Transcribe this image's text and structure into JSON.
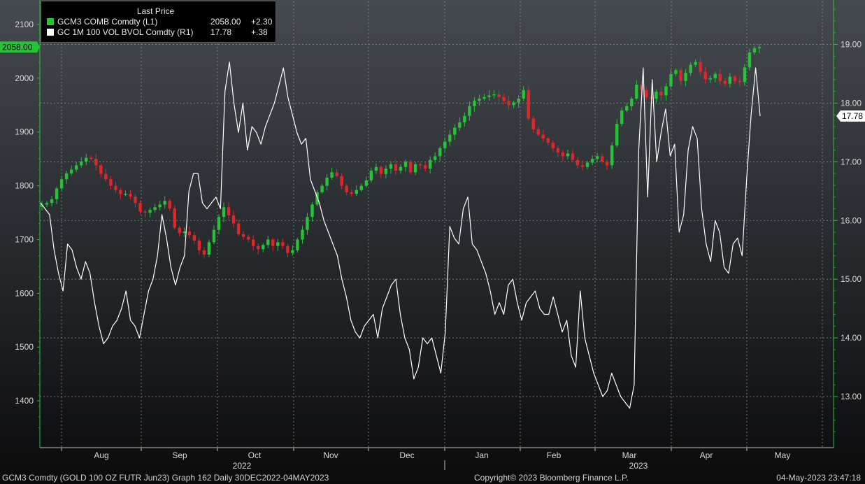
{
  "legend": {
    "header": "Last Price",
    "items": [
      {
        "name": "GCM3 COMB Comdty  (L1)",
        "value": "2058.00",
        "change": "+2.30",
        "color": "#25c437"
      },
      {
        "name": "GC 1M 100 VOL BVOL Comdty  (R1)",
        "value": "17.78",
        "change": "+.38",
        "color": "#ffffff"
      }
    ]
  },
  "footer": {
    "left": "GCM3 Comdty (GOLD 100 OZ FUTR  Jun23) Graph 162  Daily 30DEC2022-04MAY2023",
    "center": "Copyright© 2023 Bloomberg Finance L.P.",
    "right": "04-May-2023 23:47:18"
  },
  "chart_data": {
    "type": "line",
    "colors": {
      "up": "#25c437",
      "down": "#e0262b",
      "volatility": "#ffffff",
      "left_axis": "#25c437",
      "right_axis": "#25c437"
    },
    "left_axis": {
      "ticks": [
        1400,
        1500,
        1600,
        1700,
        1800,
        1900,
        2000,
        2100
      ],
      "last_label": "2058.00",
      "last_value": 2058
    },
    "right_axis": {
      "ticks": [
        13.0,
        14.0,
        15.0,
        16.0,
        17.0,
        18.0,
        19.0
      ],
      "tick_labels": [
        "13.00",
        "14.00",
        "15.00",
        "16.00",
        "17.00",
        "18.00",
        "19.00"
      ],
      "last_label": "17.78",
      "last_value": 17.78
    },
    "months": [
      "Aug",
      "Sep",
      "Oct",
      "Nov",
      "Dec",
      "Jan",
      "Feb",
      "Mar",
      "Apr",
      "May"
    ],
    "years": [
      "2022",
      "2023"
    ],
    "grid": true,
    "series": [
      {
        "name": "GCM3 COMB Comdty",
        "axis": "left",
        "style": "candlestick",
        "values": [
          1765,
          1768,
          1775,
          1795,
          1812,
          1823,
          1830,
          1838,
          1845,
          1852,
          1850,
          1838,
          1822,
          1812,
          1800,
          1792,
          1785,
          1785,
          1780,
          1768,
          1752,
          1750,
          1755,
          1760,
          1765,
          1772,
          1758,
          1722,
          1712,
          1715,
          1708,
          1698,
          1680,
          1672,
          1695,
          1718,
          1742,
          1760,
          1745,
          1730,
          1710,
          1705,
          1700,
          1688,
          1682,
          1690,
          1700,
          1688,
          1695,
          1688,
          1675,
          1680,
          1700,
          1718,
          1742,
          1765,
          1788,
          1800,
          1815,
          1825,
          1818,
          1800,
          1788,
          1785,
          1792,
          1800,
          1810,
          1828,
          1835,
          1822,
          1832,
          1840,
          1828,
          1835,
          1845,
          1825,
          1840,
          1838,
          1832,
          1848,
          1855,
          1870,
          1882,
          1895,
          1908,
          1918,
          1930,
          1948,
          1958,
          1962,
          1965,
          1968,
          1970,
          1965,
          1958,
          1950,
          1955,
          1962,
          1978,
          1925,
          1905,
          1895,
          1888,
          1880,
          1870,
          1862,
          1855,
          1860,
          1848,
          1838,
          1835,
          1843,
          1850,
          1855,
          1845,
          1838,
          1875,
          1915,
          1940,
          1948,
          1962,
          1988,
          1978,
          1965,
          1962,
          1975,
          1968,
          1985,
          2008,
          2015,
          1995,
          2010,
          2025,
          2030,
          2012,
          1998,
          2000,
          2008,
          1995,
          1990,
          2003,
          1995,
          1993,
          2020,
          2048,
          2056,
          2058
        ]
      },
      {
        "name": "GC 1M 100 VOL BVOL Comdty",
        "axis": "right",
        "style": "line",
        "values": [
          16.3,
          16.2,
          16.1,
          15.5,
          15.1,
          14.8,
          15.6,
          15.5,
          15.2,
          15.0,
          15.3,
          15.1,
          14.6,
          14.2,
          13.9,
          14.0,
          14.2,
          14.3,
          14.5,
          14.8,
          14.3,
          14.2,
          14.0,
          14.4,
          14.8,
          15.0,
          15.4,
          16.1,
          15.7,
          15.2,
          14.9,
          15.2,
          15.4,
          16.5,
          16.8,
          16.8,
          16.3,
          16.2,
          16.3,
          16.4,
          16.2,
          18.2,
          18.7,
          18.0,
          17.5,
          18.0,
          17.2,
          17.6,
          17.5,
          17.3,
          17.6,
          17.8,
          18.0,
          18.3,
          18.6,
          18.1,
          17.8,
          17.5,
          17.3,
          17.4,
          16.7,
          16.5,
          16.3,
          16.0,
          15.8,
          15.6,
          15.4,
          15.0,
          14.7,
          14.3,
          14.1,
          14.0,
          14.2,
          14.3,
          14.4,
          14.0,
          14.5,
          14.7,
          14.9,
          15.0,
          14.4,
          14.0,
          13.8,
          13.3,
          13.5,
          14.0,
          13.9,
          14.0,
          13.7,
          13.4,
          14.1,
          15.9,
          15.7,
          15.6,
          16.2,
          16.4,
          15.6,
          15.5,
          15.3,
          15.1,
          14.8,
          14.4,
          14.6,
          14.4,
          14.9,
          15.0,
          14.6,
          14.3,
          14.6,
          14.7,
          14.8,
          14.5,
          14.4,
          14.4,
          14.7,
          14.4,
          14.1,
          14.3,
          13.7,
          13.5,
          14.8,
          14.0,
          13.7,
          13.4,
          13.2,
          13.0,
          13.1,
          13.4,
          13.2,
          13.0,
          12.9,
          12.8,
          13.2,
          17.2,
          18.6,
          16.4,
          18.4,
          17.0,
          17.5,
          17.9,
          17.1,
          17.3,
          15.8,
          16.1,
          17.2,
          17.6,
          17.4,
          16.2,
          15.6,
          15.3,
          16.0,
          15.8,
          15.2,
          15.1,
          15.6,
          15.7,
          15.4,
          16.7,
          17.8,
          18.6,
          17.78
        ]
      }
    ]
  }
}
